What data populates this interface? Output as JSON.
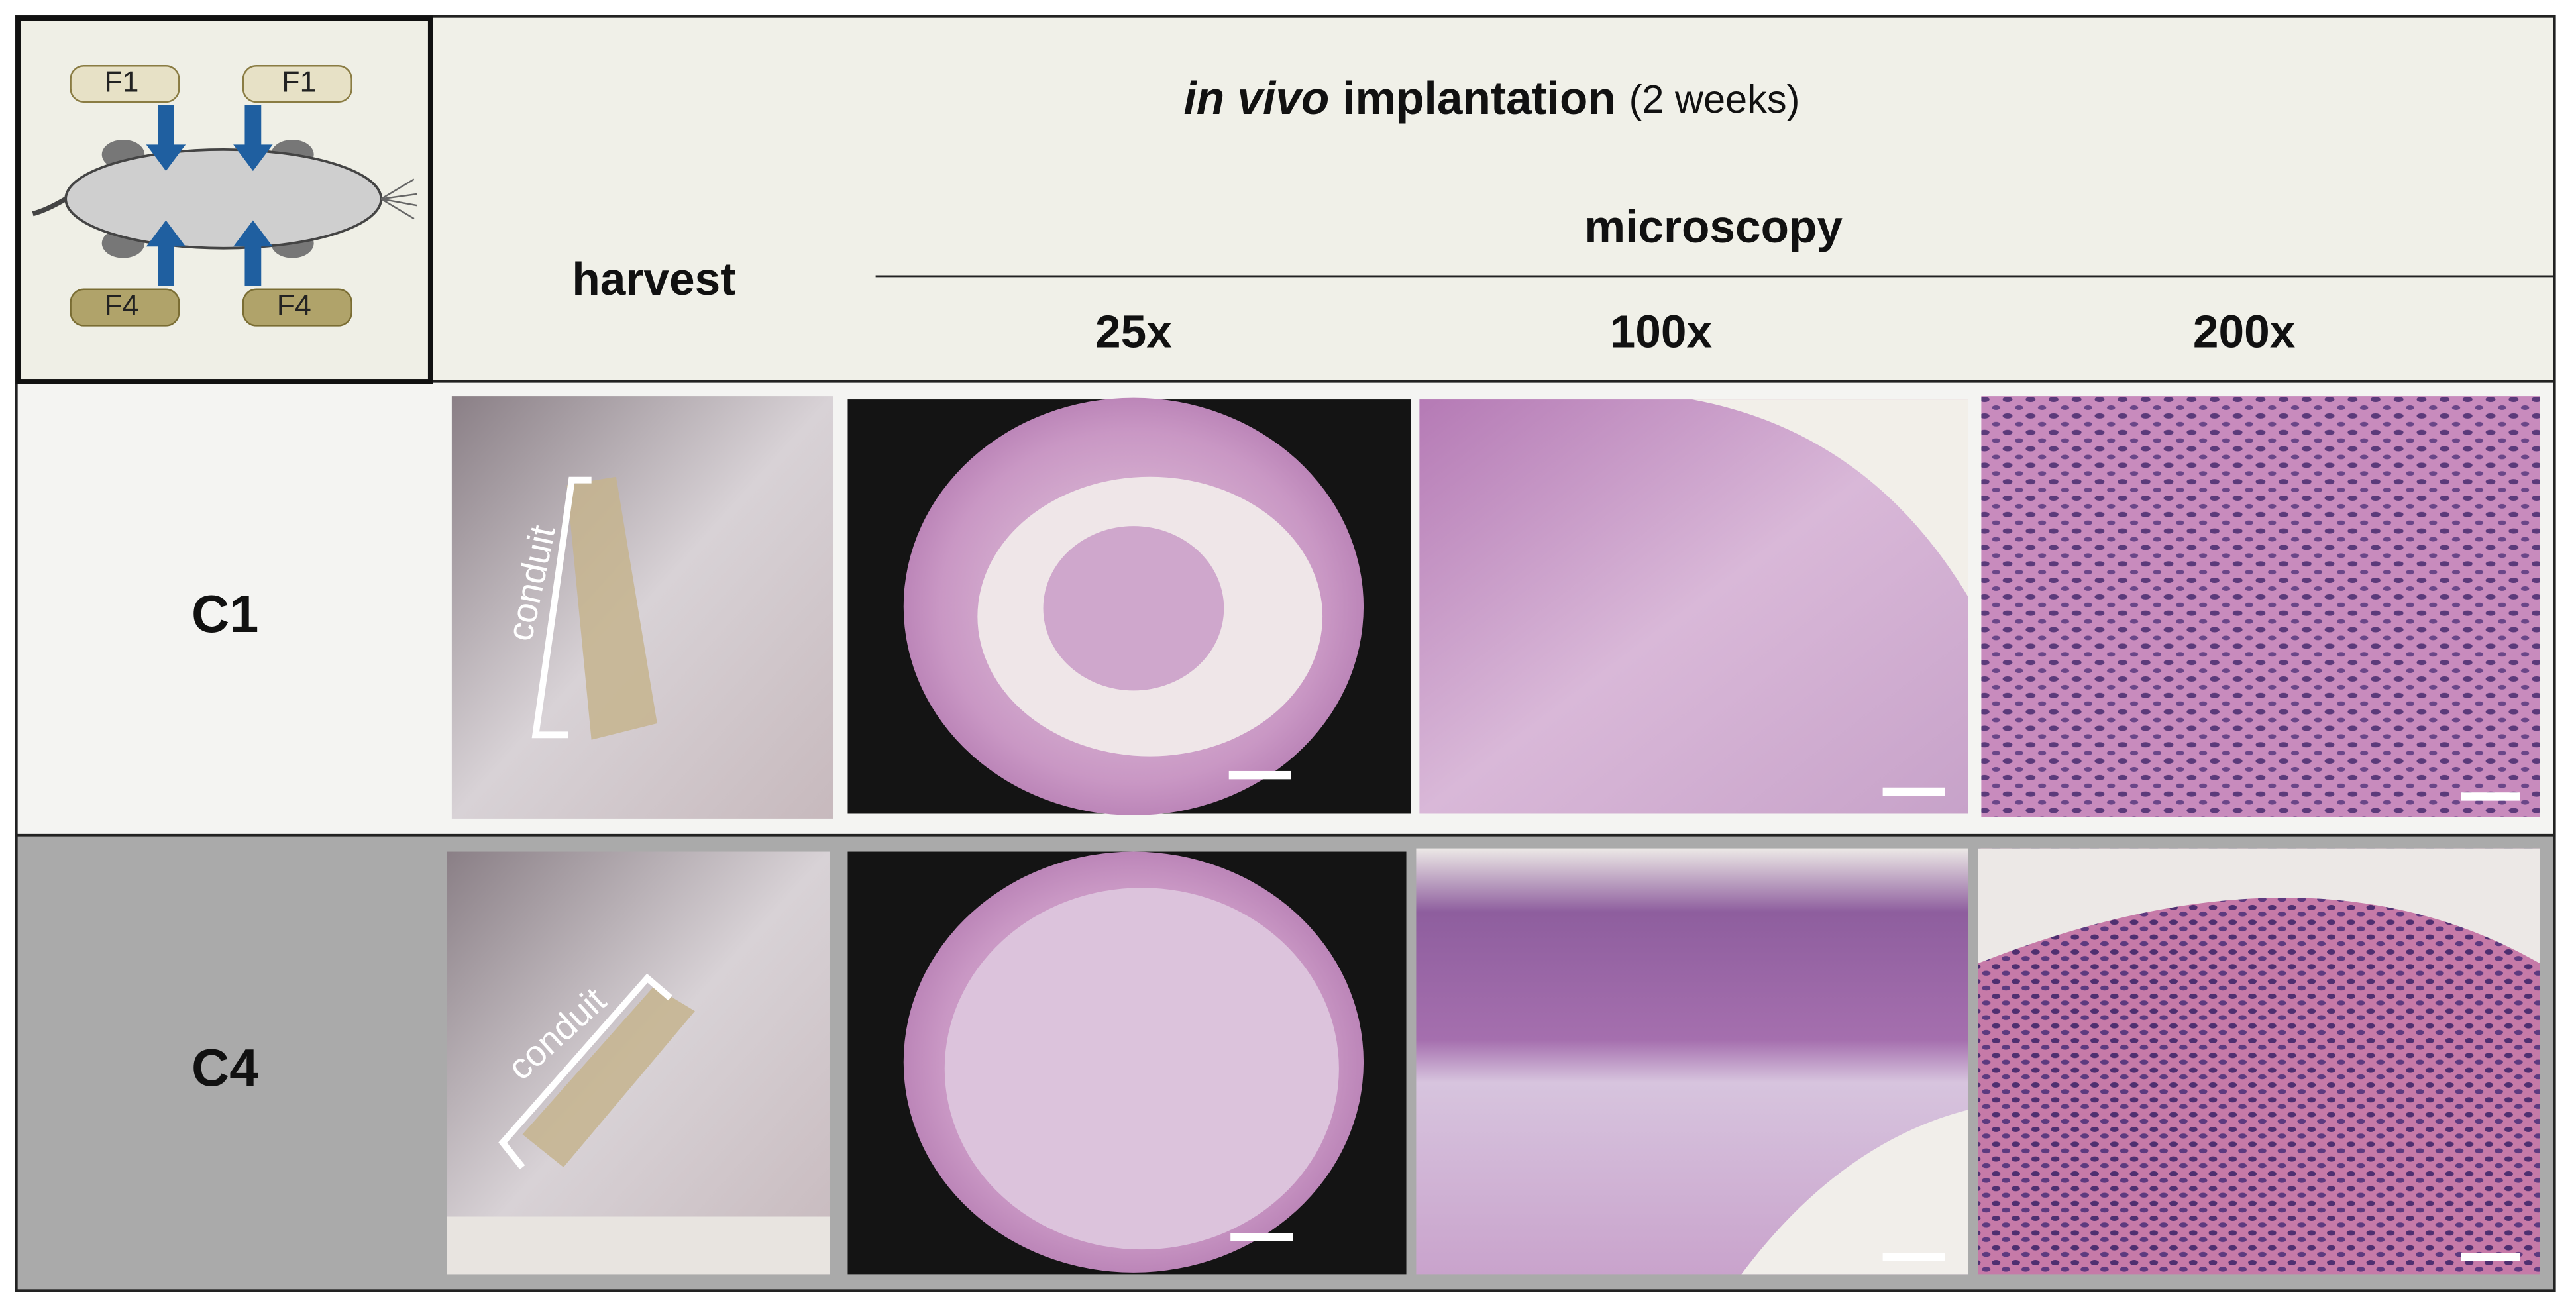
{
  "diagram": {
    "labels": [
      "F1",
      "F1",
      "F4",
      "F4"
    ]
  },
  "header": {
    "title_italic": "in vivo",
    "title_bold": "implantation",
    "title_note": "(2 weeks)",
    "group": "microscopy",
    "columns": [
      "harvest",
      "25x",
      "100x",
      "200x"
    ]
  },
  "rows": [
    {
      "label": "C1",
      "annotation": "conduit"
    },
    {
      "label": "C4",
      "annotation": "conduit"
    }
  ]
}
